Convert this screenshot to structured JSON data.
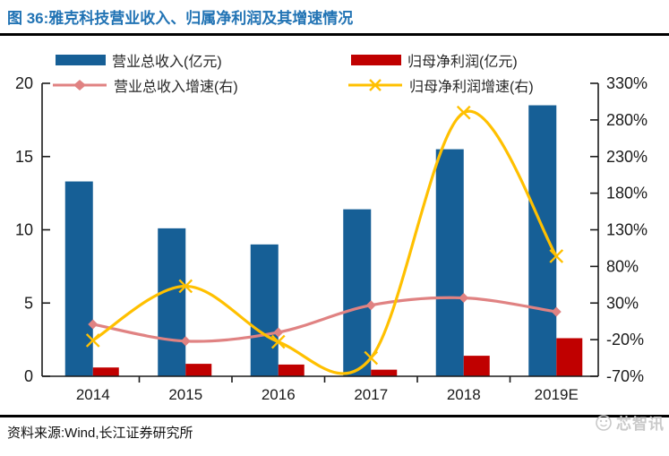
{
  "figure": {
    "caption_prefix": "图 36:",
    "caption": "雅克科技营业收入、归属净利润及其增速情况",
    "source_text": "资料来源:Wind,长江证券研究所",
    "watermark_text": "芯智讯"
  },
  "colors": {
    "title_blue": "#2173B4",
    "revenue_bar": "#165F96",
    "profit_bar": "#C00000",
    "revenue_growth_line": "#E08282",
    "profit_growth_line": "#FFC000",
    "axis": "#1A1A1A",
    "rule": "#000000",
    "watermark": "#C9C9C9"
  },
  "chart_data": {
    "type": "combo-bar-line",
    "title": "雅克科技营业收入、归属净利润及其增速情况",
    "categories": [
      "2014",
      "2015",
      "2016",
      "2017",
      "2018",
      "2019E"
    ],
    "series": [
      {
        "name": "营业总收入(亿元)",
        "type": "bar",
        "axis": "left",
        "color": "#165F96",
        "values": [
          13.3,
          10.1,
          9.0,
          11.4,
          15.5,
          18.5
        ]
      },
      {
        "name": "归母净利润(亿元)",
        "type": "bar",
        "axis": "left",
        "color": "#C00000",
        "values": [
          0.6,
          0.85,
          0.8,
          0.45,
          1.4,
          2.6
        ]
      },
      {
        "name": "营业总收入增速(右)",
        "type": "line",
        "axis": "right",
        "color": "#E08282",
        "marker": "diamond",
        "values": [
          1,
          -22,
          -10,
          27,
          37,
          18
        ],
        "unit": "%"
      },
      {
        "name": "归母净利润增速(右)",
        "type": "line",
        "axis": "right",
        "color": "#FFC000",
        "marker": "x",
        "values": [
          -21,
          53,
          -23,
          -45,
          290,
          94
        ],
        "unit": "%"
      }
    ],
    "left_axis": {
      "min": 0,
      "max": 20,
      "ticks": [
        0,
        5,
        10,
        15,
        20
      ]
    },
    "right_axis": {
      "min": -70,
      "max": 330,
      "ticks": [
        -70,
        -20,
        30,
        80,
        130,
        180,
        230,
        280,
        330
      ],
      "suffix": "%"
    },
    "grid": false,
    "legend_position": "top",
    "smooth_lines": true,
    "line_clip_bottom": true
  }
}
